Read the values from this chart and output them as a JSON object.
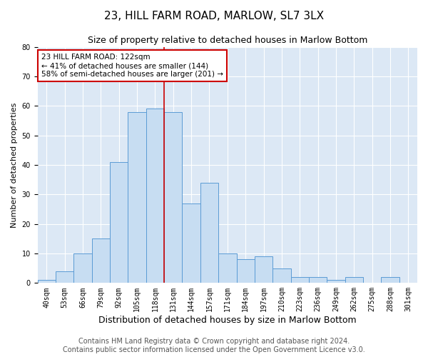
{
  "title": "23, HILL FARM ROAD, MARLOW, SL7 3LX",
  "subtitle": "Size of property relative to detached houses in Marlow Bottom",
  "xlabel": "Distribution of detached houses by size in Marlow Bottom",
  "ylabel": "Number of detached properties",
  "categories": [
    "40sqm",
    "53sqm",
    "66sqm",
    "79sqm",
    "92sqm",
    "105sqm",
    "118sqm",
    "131sqm",
    "144sqm",
    "157sqm",
    "171sqm",
    "184sqm",
    "197sqm",
    "210sqm",
    "223sqm",
    "236sqm",
    "249sqm",
    "262sqm",
    "275sqm",
    "288sqm",
    "301sqm"
  ],
  "values": [
    1,
    4,
    10,
    15,
    41,
    58,
    59,
    58,
    27,
    34,
    10,
    8,
    9,
    5,
    2,
    2,
    1,
    2,
    0,
    2,
    0
  ],
  "bar_color": "#c7ddf2",
  "bar_edge_color": "#5b9bd5",
  "vline_color": "#cc0000",
  "annotation_text": "23 HILL FARM ROAD: 122sqm\n← 41% of detached houses are smaller (144)\n58% of semi-detached houses are larger (201) →",
  "annotation_box_color": "#cc0000",
  "ylim": [
    0,
    80
  ],
  "yticks": [
    0,
    10,
    20,
    30,
    40,
    50,
    60,
    70,
    80
  ],
  "bg_color": "#dce8f5",
  "footer_line1": "Contains HM Land Registry data © Crown copyright and database right 2024.",
  "footer_line2": "Contains public sector information licensed under the Open Government Licence v3.0.",
  "title_fontsize": 11,
  "subtitle_fontsize": 9,
  "xlabel_fontsize": 9,
  "ylabel_fontsize": 8,
  "tick_fontsize": 7,
  "annotation_fontsize": 7.5,
  "footer_fontsize": 7
}
